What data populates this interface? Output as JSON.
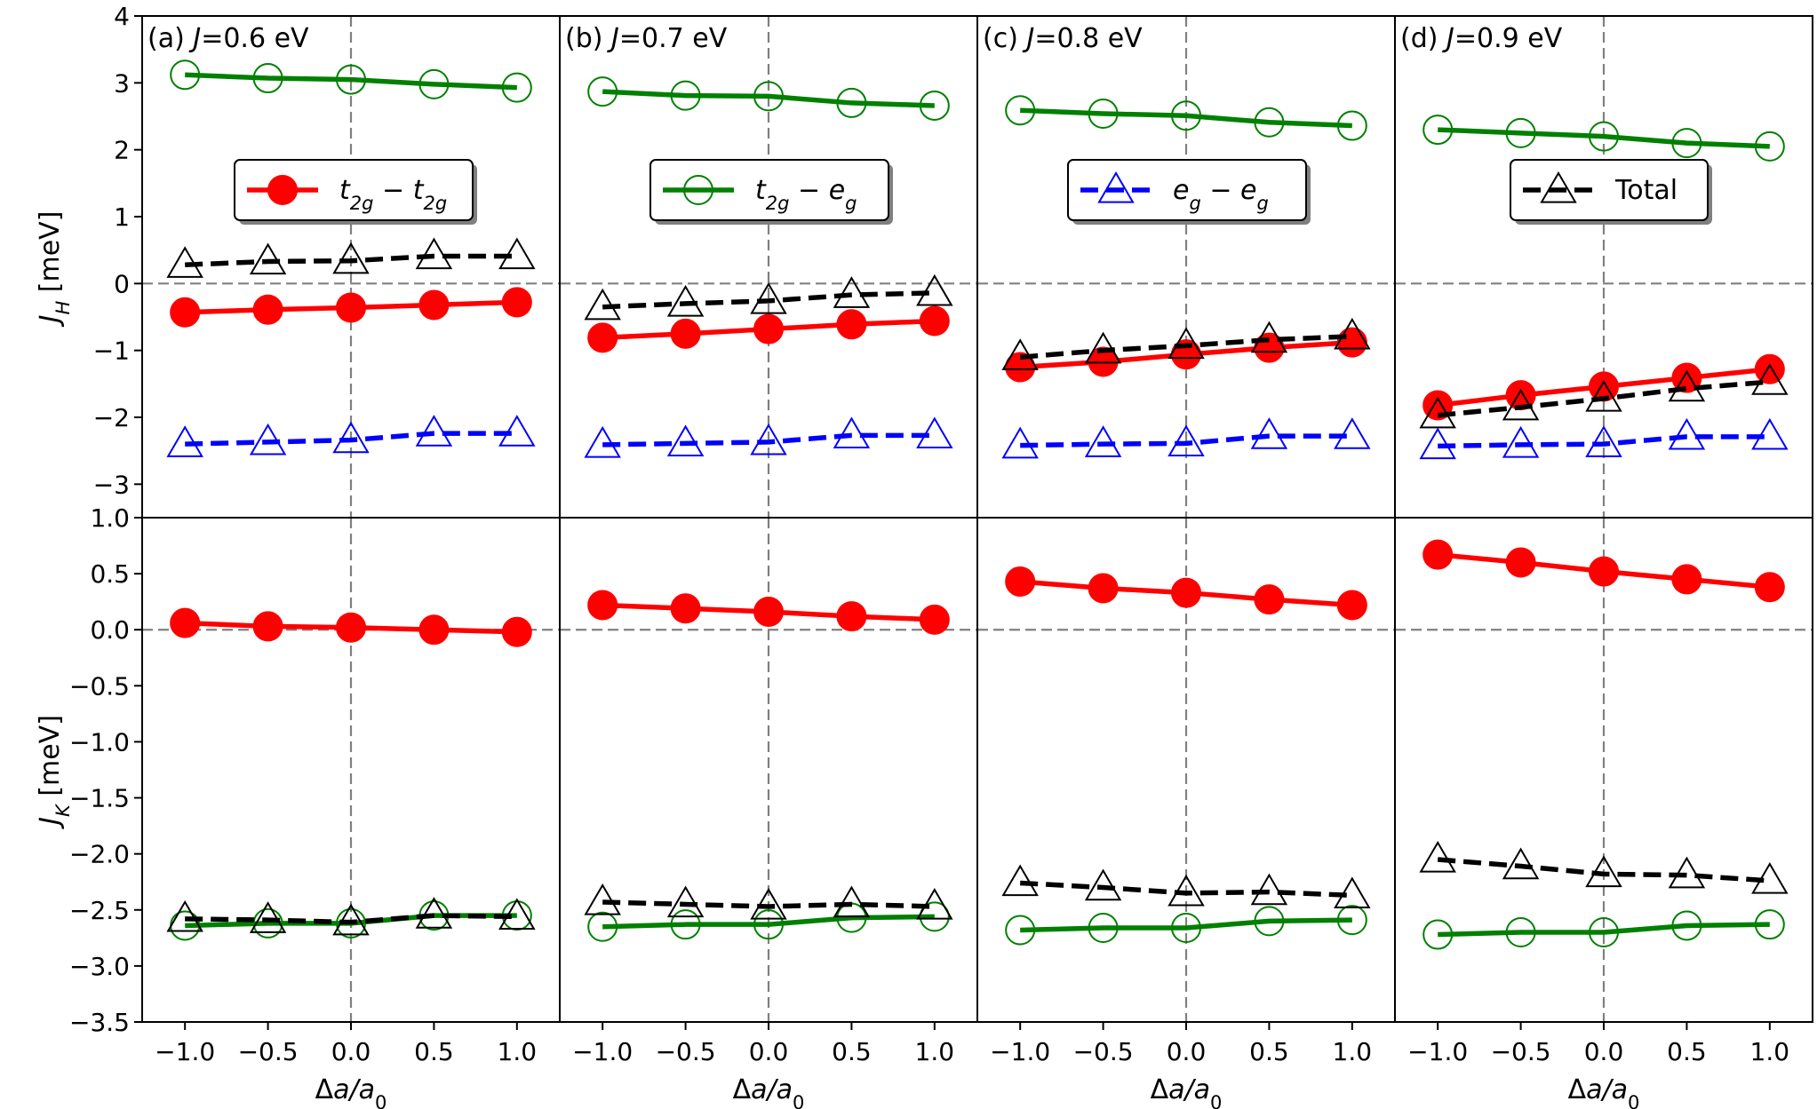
{
  "chart_data": {
    "type": "line",
    "x": [
      -1.0,
      -0.5,
      0.0,
      0.5,
      1.0
    ],
    "xlabel": "Δa/a₀",
    "xticks": [
      "−1.0",
      "−0.5",
      "0.0",
      "0.5",
      "1.0"
    ],
    "rows": [
      {
        "key": "JH",
        "ylabel": "J_H [meV]",
        "ylim": [
          -3.5,
          4
        ],
        "yticks": [
          -3,
          -2,
          -1,
          0,
          1,
          2,
          3,
          4
        ],
        "ytick_labels": [
          "−3",
          "−2",
          "−1",
          "0",
          "1",
          "2",
          "3",
          "4"
        ]
      },
      {
        "key": "JK",
        "ylabel": "J_K [meV]",
        "ylim": [
          -3.5,
          1.0
        ],
        "yticks": [
          -3.5,
          -3.0,
          -2.5,
          -2.0,
          -1.5,
          -1.0,
          -0.5,
          0.0,
          0.5,
          1.0
        ],
        "ytick_labels": [
          "−3.5",
          "−3.0",
          "−2.5",
          "−2.0",
          "−1.5",
          "−1.0",
          "−0.5",
          "0.0",
          "0.5",
          "1.0"
        ]
      }
    ],
    "series_styles": [
      {
        "name": "t2g-t2g",
        "color": "#ff0000",
        "marker": "filled-circle",
        "dash": "solid"
      },
      {
        "name": "t2g-eg",
        "color": "#008000",
        "marker": "open-circle",
        "dash": "solid"
      },
      {
        "name": "eg-eg",
        "color": "#0000ff",
        "marker": "open-triangle",
        "dash": "dashed"
      },
      {
        "name": "Total",
        "color": "#000000",
        "marker": "open-triangle",
        "dash": "dashed"
      }
    ],
    "legend": [
      {
        "series": "t2g-t2g",
        "label": "t2g − t2g",
        "panel": 0
      },
      {
        "series": "t2g-eg",
        "label": "t2g − eg",
        "panel": 1
      },
      {
        "series": "eg-eg",
        "label": "eg − eg",
        "panel": 2
      },
      {
        "series": "Total",
        "label": "Total",
        "panel": 3
      }
    ],
    "panels": [
      {
        "label": "(a) J=0.6 eV",
        "JH": {
          "t2g-t2g": [
            -0.43,
            -0.39,
            -0.36,
            -0.32,
            -0.28
          ],
          "t2g-eg": [
            3.12,
            3.07,
            3.05,
            2.98,
            2.93
          ],
          "eg-eg": [
            -2.4,
            -2.37,
            -2.34,
            -2.24,
            -2.24
          ],
          "Total": [
            0.28,
            0.33,
            0.34,
            0.41,
            0.41
          ]
        },
        "JK": {
          "t2g-t2g": [
            0.06,
            0.03,
            0.02,
            0.0,
            -0.02
          ],
          "t2g-eg": [
            -2.64,
            -2.62,
            -2.62,
            -2.55,
            -2.55
          ],
          "Total": [
            -2.58,
            -2.59,
            -2.61,
            -2.55,
            -2.56
          ]
        }
      },
      {
        "label": "(b) J=0.7 eV",
        "JH": {
          "t2g-t2g": [
            -0.81,
            -0.75,
            -0.68,
            -0.61,
            -0.56
          ],
          "t2g-eg": [
            2.87,
            2.81,
            2.8,
            2.7,
            2.66
          ],
          "eg-eg": [
            -2.41,
            -2.39,
            -2.37,
            -2.27,
            -2.27
          ],
          "Total": [
            -0.35,
            -0.3,
            -0.26,
            -0.17,
            -0.14
          ]
        },
        "JK": {
          "t2g-t2g": [
            0.22,
            0.19,
            0.16,
            0.12,
            0.09
          ],
          "t2g-eg": [
            -2.65,
            -2.63,
            -2.63,
            -2.57,
            -2.56
          ],
          "Total": [
            -2.43,
            -2.45,
            -2.47,
            -2.45,
            -2.47
          ]
        }
      },
      {
        "label": "(c) J=0.8 eV",
        "JH": {
          "t2g-t2g": [
            -1.25,
            -1.17,
            -1.06,
            -0.96,
            -0.88
          ],
          "t2g-eg": [
            2.59,
            2.54,
            2.51,
            2.41,
            2.36
          ],
          "eg-eg": [
            -2.42,
            -2.4,
            -2.39,
            -2.28,
            -2.28
          ],
          "Total": [
            -1.1,
            -1.0,
            -0.93,
            -0.84,
            -0.79
          ]
        },
        "JK": {
          "t2g-t2g": [
            0.43,
            0.37,
            0.33,
            0.27,
            0.22
          ],
          "t2g-eg": [
            -2.68,
            -2.66,
            -2.66,
            -2.6,
            -2.59
          ],
          "Total": [
            -2.26,
            -2.3,
            -2.35,
            -2.34,
            -2.37
          ]
        }
      },
      {
        "label": "(d) J=0.9 eV",
        "JH": {
          "t2g-t2g": [
            -1.82,
            -1.67,
            -1.54,
            -1.41,
            -1.28
          ],
          "t2g-eg": [
            2.3,
            2.25,
            2.2,
            2.1,
            2.05
          ],
          "eg-eg": [
            -2.43,
            -2.41,
            -2.4,
            -2.29,
            -2.29
          ],
          "Total": [
            -1.97,
            -1.85,
            -1.72,
            -1.57,
            -1.47
          ]
        },
        "JK": {
          "t2g-t2g": [
            0.67,
            0.6,
            0.52,
            0.45,
            0.38
          ],
          "t2g-eg": [
            -2.72,
            -2.7,
            -2.7,
            -2.64,
            -2.63
          ],
          "Total": [
            -2.05,
            -2.11,
            -2.18,
            -2.19,
            -2.24
          ]
        }
      }
    ]
  }
}
